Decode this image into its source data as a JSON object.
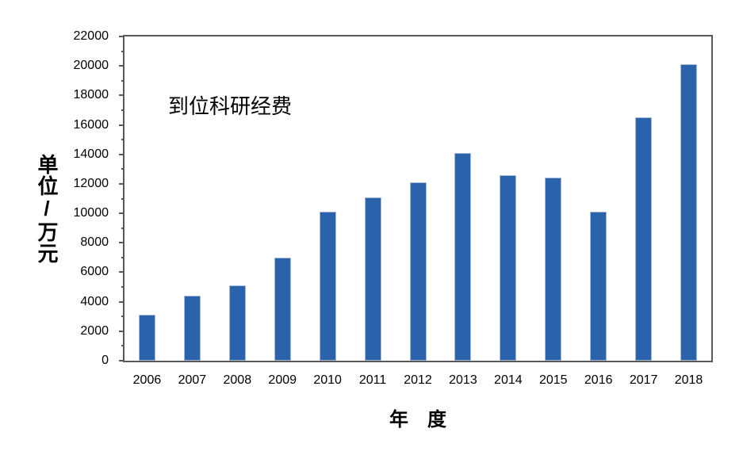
{
  "chart_data": {
    "type": "bar",
    "title": "到位科研经费",
    "xlabel": "年　度",
    "ylabel": "单位/万元",
    "categories": [
      "2006",
      "2007",
      "2008",
      "2009",
      "2010",
      "2011",
      "2012",
      "2013",
      "2014",
      "2015",
      "2016",
      "2017",
      "2018"
    ],
    "values": [
      3100,
      4400,
      5100,
      7000,
      10100,
      11100,
      12100,
      14100,
      12600,
      12400,
      10100,
      16500,
      20100
    ],
    "ylim": [
      0,
      22000
    ],
    "ytick_step": 2000,
    "yminor_step": 1000,
    "grid": false,
    "legend": "none",
    "bar_color": "#2A63AC",
    "bar_edge_color": "#A9B9DA",
    "axis_color": "#595959",
    "text_color": "#000000"
  }
}
